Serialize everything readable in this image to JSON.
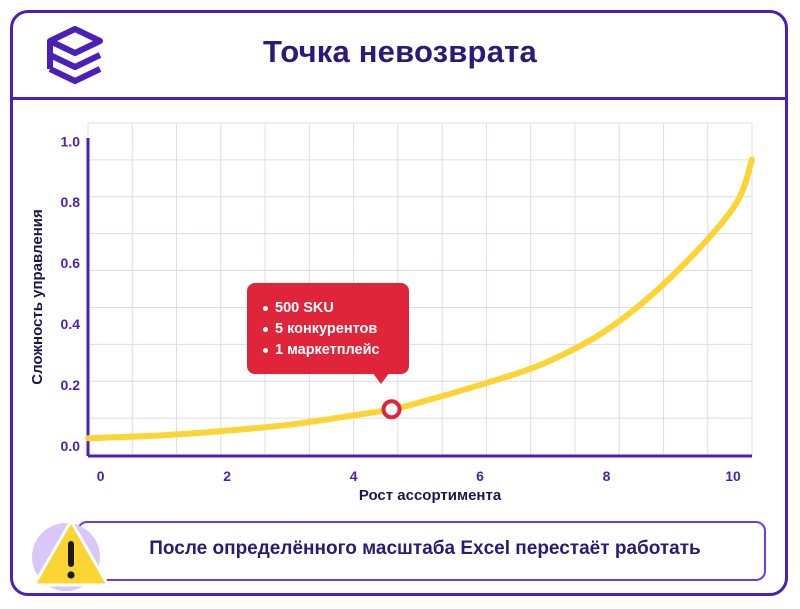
{
  "header": {
    "title": "Точка невозврата"
  },
  "colors": {
    "brand": "#4b1fb8",
    "title": "#2b1a7a",
    "curve": "#fcd535",
    "callout": "#e0253b",
    "grid": "#dcdcec",
    "warning": "#fcd535"
  },
  "logo": {
    "icon": "stacked-layers-logo-icon"
  },
  "chart_data": {
    "type": "line",
    "xlabel": "Рост ассортимента",
    "ylabel": "Сложность управления",
    "xlim": [
      -0.2,
      10.3
    ],
    "ylim": [
      -0.03,
      1.06
    ],
    "x_ticks": [
      "0",
      "2",
      "4",
      "6",
      "8",
      "10"
    ],
    "y_ticks": [
      "0.0",
      "0.2",
      "0.4",
      "0.6",
      "0.8",
      "1.0"
    ],
    "grid": true,
    "series": [
      {
        "x": [
          -0.2,
          1,
          2,
          3,
          4,
          4.6,
          5,
          6,
          7,
          8,
          9,
          10,
          10.3
        ],
        "y": [
          0.025,
          0.035,
          0.05,
          0.07,
          0.1,
          0.12,
          0.14,
          0.2,
          0.27,
          0.38,
          0.55,
          0.78,
          0.94
        ]
      }
    ],
    "marker": {
      "x": 4.6,
      "y": 0.12
    },
    "annotation": {
      "items": [
        "500 SKU",
        "5 конкурентов",
        "1 маркетплейс"
      ]
    }
  },
  "footer": {
    "warning_icon": "warning-triangle-icon",
    "text": "После определённого масштаба Excel перестаёт работать"
  }
}
